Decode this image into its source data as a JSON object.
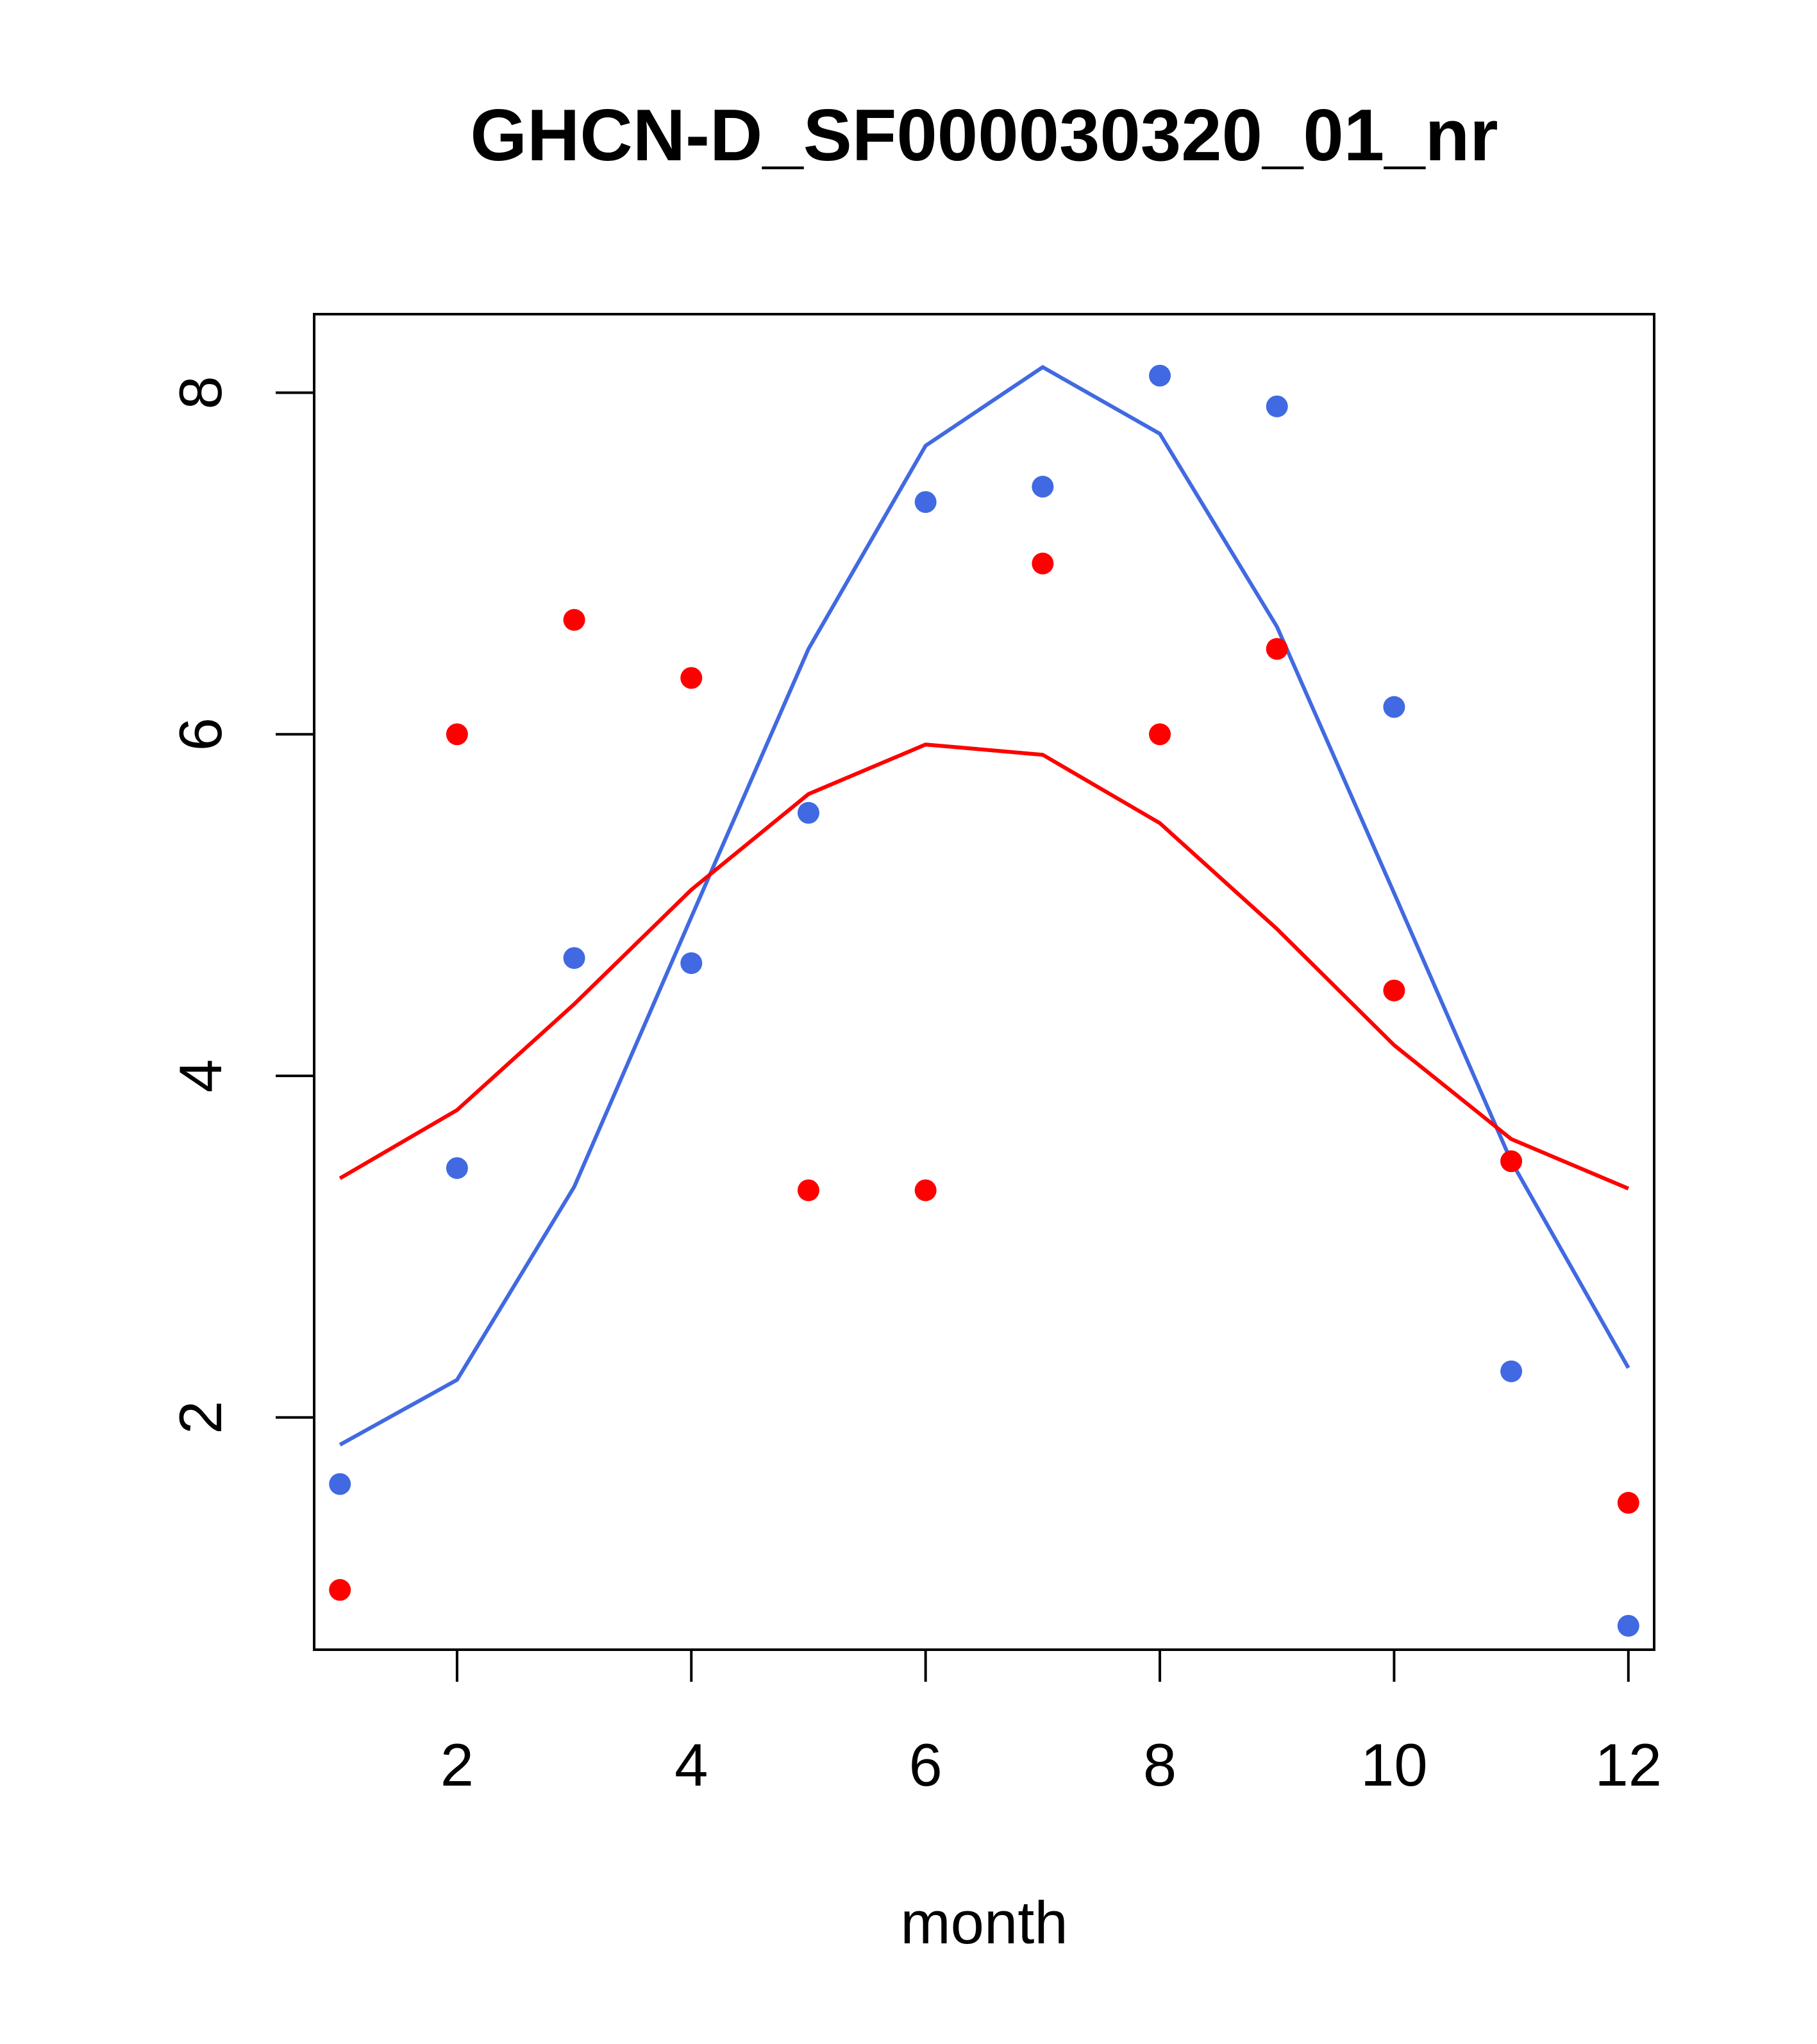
{
  "chart_data": {
    "type": "scatter",
    "title": "GHCN-D_SF000030320_01_nr",
    "xlabel": "month",
    "ylabel": "",
    "xlim": [
      0.78,
      12.22
    ],
    "ylim": [
      0.64,
      8.46
    ],
    "grid": false,
    "x_ticks": [
      2,
      4,
      6,
      8,
      10,
      12
    ],
    "y_ticks": [
      2,
      4,
      6,
      8
    ],
    "months": [
      1,
      2,
      3,
      4,
      5,
      6,
      7,
      8,
      9,
      10,
      11,
      12
    ],
    "series": [
      {
        "name": "blue-points",
        "color": "#4169e1",
        "mark": "point",
        "values": [
          1.61,
          3.46,
          4.69,
          4.66,
          5.54,
          7.36,
          7.45,
          8.1,
          7.92,
          6.16,
          2.27,
          0.78
        ]
      },
      {
        "name": "red-points",
        "color": "#ff0000",
        "mark": "point",
        "values": [
          0.99,
          6.0,
          6.67,
          6.33,
          3.33,
          3.33,
          7.0,
          6.0,
          6.5,
          4.5,
          3.5,
          1.5
        ]
      },
      {
        "name": "blue-line",
        "color": "#4169e1",
        "mark": "line",
        "values": [
          1.84,
          2.22,
          3.35,
          4.93,
          6.5,
          7.69,
          8.15,
          7.76,
          6.63,
          5.07,
          3.5,
          2.29
        ]
      },
      {
        "name": "red-line",
        "color": "#ff0000",
        "mark": "line",
        "values": [
          3.4,
          3.8,
          4.42,
          5.09,
          5.65,
          5.94,
          5.88,
          5.48,
          4.86,
          4.18,
          3.63,
          3.34
        ]
      }
    ]
  }
}
